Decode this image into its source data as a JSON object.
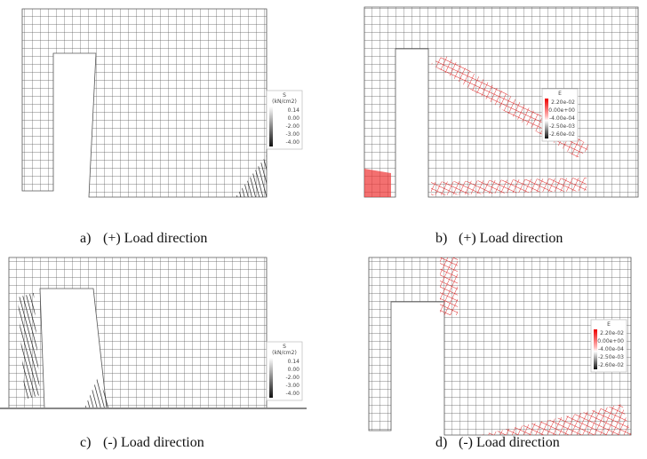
{
  "panels": [
    {
      "caption_label": "a)",
      "caption": "(+) Load direction",
      "legend": {
        "title": "S",
        "unit": "(kN/cm2)",
        "labels": [
          "0.14",
          "0.00",
          "-2.00",
          "-3.00",
          "-4.00"
        ]
      }
    },
    {
      "caption_label": "b)",
      "caption": "(+) Load direction",
      "legend": {
        "title": "E",
        "labels": [
          "2.20e-02",
          "0.00e+00",
          "-4.00e-04",
          "-2.50e-03",
          "-2.60e-02"
        ]
      }
    },
    {
      "caption_label": "c)",
      "caption": "(-) Load direction",
      "legend": {
        "title": "S",
        "unit": "(kN/cm2)",
        "labels": [
          "0.14",
          "0.00",
          "-2.00",
          "-3.00",
          "-4.00"
        ]
      }
    },
    {
      "caption_label": "d)",
      "caption": "(-) Load direction",
      "legend": {
        "title": "E",
        "labels": [
          "2.20e-02",
          "0.00e+00",
          "-4.00e-04",
          "-2.50e-03",
          "-2.60e-02"
        ]
      }
    }
  ]
}
